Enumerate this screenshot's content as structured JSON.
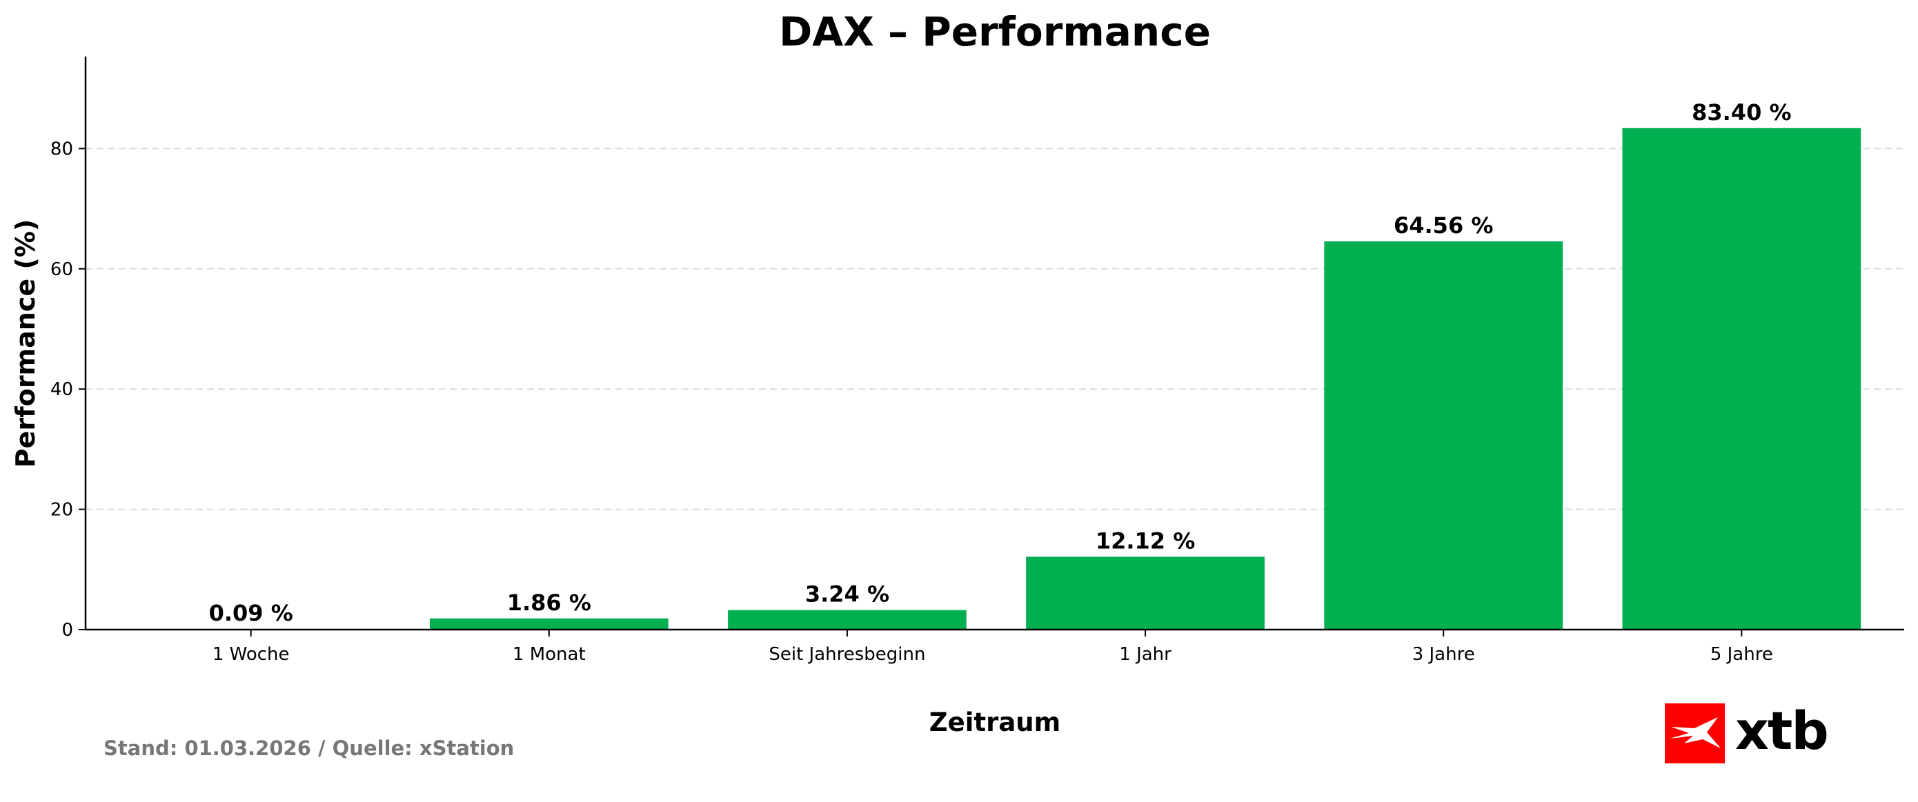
{
  "chart_data": {
    "type": "bar",
    "title": "DAX – Performance",
    "xlabel": "Zeitraum",
    "ylabel": "Performance (%)",
    "categories": [
      "1 Woche",
      "1 Monat",
      "Seit Jahresbeginn",
      "1 Jahr",
      "3 Jahre",
      "5 Jahre"
    ],
    "values": [
      0.09,
      1.86,
      3.24,
      12.12,
      64.56,
      83.4
    ],
    "value_labels": [
      "0.09 %",
      "1.86 %",
      "3.24 %",
      "12.12 %",
      "64.56 %",
      "83.40 %"
    ],
    "ylim": [
      0,
      95.3
    ],
    "yticks": [
      0,
      20,
      40,
      60,
      80
    ],
    "grid": "y-dashed",
    "bar_color": "#00AF50"
  },
  "footer": {
    "source": "Stand: 01.03.2026 / Quelle: xStation",
    "logo_text": "xtb",
    "logo_color": "#FF0000"
  }
}
